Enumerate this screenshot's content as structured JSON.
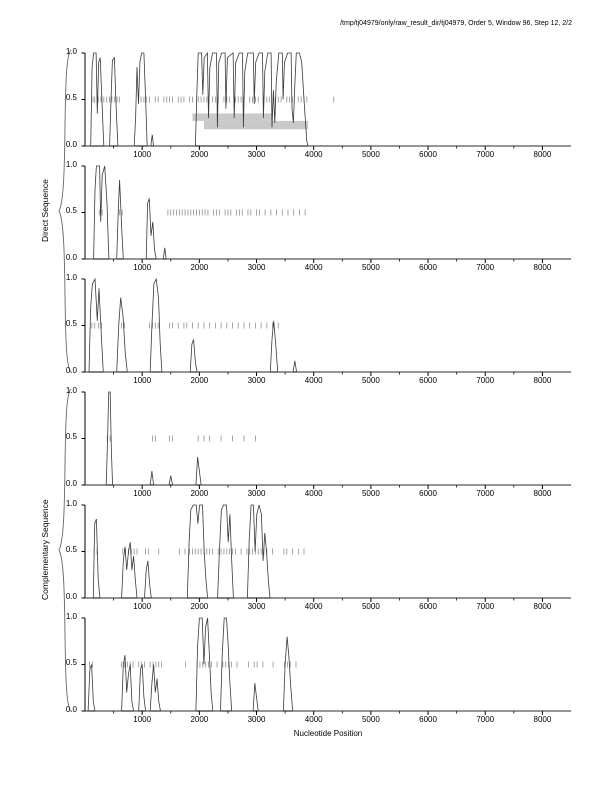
{
  "title": "/tmp/tj04979/only/raw_result_dir/tj04979, Order 5, Window 96, Step 12, 2/2",
  "xlabel": "Nucleotide Position",
  "group_labels": {
    "direct": "Direct Sequence",
    "complementary": "Complementary Sequence"
  },
  "axis": {
    "x_min": 0,
    "x_max": 8500,
    "x_major_ticks": [
      1000,
      2000,
      3000,
      4000,
      5000,
      6000,
      7000,
      8000
    ],
    "x_minor_step": 500,
    "y_tick_labels": [
      "1.0",
      "0.5",
      "0.0"
    ],
    "y_tick_values": [
      1,
      0.5,
      0
    ]
  },
  "colors": {
    "curve": "#3a3a3a",
    "marks": "#909090",
    "region": "#c9c9c9",
    "axis": "#000000",
    "brace": "#666666"
  },
  "chart_data": [
    {
      "name": "direct-frame-1",
      "type": "line",
      "ylim": [
        0,
        1
      ],
      "points": [
        [
          0,
          0
        ],
        [
          100,
          0
        ],
        [
          125,
          0.85
        ],
        [
          150,
          1
        ],
        [
          195,
          1
        ],
        [
          215,
          0.35
        ],
        [
          240,
          0.9
        ],
        [
          265,
          0.95
        ],
        [
          295,
          0.5
        ],
        [
          325,
          0.05
        ],
        [
          330,
          0
        ],
        [
          430,
          0
        ],
        [
          455,
          0.5
        ],
        [
          480,
          0.92
        ],
        [
          515,
          0.95
        ],
        [
          545,
          0.4
        ],
        [
          575,
          0
        ],
        [
          860,
          0
        ],
        [
          885,
          0.3
        ],
        [
          910,
          0.85
        ],
        [
          935,
          0.45
        ],
        [
          960,
          0.9
        ],
        [
          990,
          1
        ],
        [
          1030,
          1
        ],
        [
          1060,
          0.5
        ],
        [
          1085,
          0.05
        ],
        [
          1090,
          0
        ],
        [
          1150,
          0
        ],
        [
          1175,
          0.12
        ],
        [
          1200,
          0
        ],
        [
          1930,
          0
        ],
        [
          1955,
          0.55
        ],
        [
          1980,
          1
        ],
        [
          2040,
          1
        ],
        [
          2060,
          0.55
        ],
        [
          2085,
          0.95
        ],
        [
          2140,
          1
        ],
        [
          2160,
          0.3
        ],
        [
          2185,
          0.85
        ],
        [
          2230,
          1
        ],
        [
          2300,
          1
        ],
        [
          2315,
          0.2
        ],
        [
          2340,
          0.9
        ],
        [
          2390,
          1
        ],
        [
          2450,
          1
        ],
        [
          2465,
          0.4
        ],
        [
          2490,
          0.95
        ],
        [
          2590,
          1
        ],
        [
          2610,
          0.3
        ],
        [
          2635,
          0.9
        ],
        [
          2700,
          1
        ],
        [
          2755,
          1
        ],
        [
          2770,
          0.2
        ],
        [
          2795,
          0.8
        ],
        [
          2845,
          1
        ],
        [
          2945,
          1
        ],
        [
          2960,
          0.45
        ],
        [
          2985,
          0.9
        ],
        [
          3045,
          1
        ],
        [
          3105,
          1
        ],
        [
          3120,
          0.3
        ],
        [
          3145,
          0.8
        ],
        [
          3195,
          1
        ],
        [
          3255,
          1
        ],
        [
          3270,
          0.2
        ],
        [
          3295,
          0.6
        ],
        [
          3320,
          0.25
        ],
        [
          3345,
          0.7
        ],
        [
          3390,
          1
        ],
        [
          3450,
          1
        ],
        [
          3465,
          0.5
        ],
        [
          3490,
          0.9
        ],
        [
          3545,
          1
        ],
        [
          3605,
          1
        ],
        [
          3620,
          0.4
        ],
        [
          3645,
          0.25
        ],
        [
          3670,
          0.65
        ],
        [
          3695,
          1
        ],
        [
          3750,
          1
        ],
        [
          3790,
          0.9
        ],
        [
          3840,
          0.4
        ],
        [
          3880,
          0.05
        ],
        [
          3900,
          0
        ],
        [
          8500,
          0
        ]
      ],
      "marks_y": 0.5,
      "marks": [
        140,
        170,
        230,
        280,
        330,
        380,
        430,
        470,
        520,
        560,
        600,
        980,
        1030,
        1080,
        1130,
        1230,
        1280,
        1380,
        1430,
        1480,
        1530,
        1630,
        1680,
        1730,
        1830,
        1880,
        1980,
        2030,
        2080,
        2130,
        2230,
        2280,
        2330,
        2430,
        2480,
        2530,
        2630,
        2680,
        2730,
        2780,
        2880,
        2930,
        2980,
        3030,
        3130,
        3180,
        3230,
        3330,
        3380,
        3430,
        3530,
        3580,
        3630,
        3730,
        3780,
        3830,
        3880,
        4350
      ],
      "regions": [
        {
          "x0": 1880,
          "x1": 3280,
          "y0": 0.27,
          "y1": 0.35
        },
        {
          "x0": 2080,
          "x1": 3900,
          "y0": 0.18,
          "y1": 0.27
        }
      ]
    },
    {
      "name": "direct-frame-2",
      "type": "line",
      "ylim": [
        0,
        1
      ],
      "points": [
        [
          0,
          0
        ],
        [
          150,
          0
        ],
        [
          175,
          0.75
        ],
        [
          200,
          1
        ],
        [
          255,
          1
        ],
        [
          275,
          0.4
        ],
        [
          300,
          0.9
        ],
        [
          345,
          1
        ],
        [
          385,
          0.6
        ],
        [
          415,
          0.05
        ],
        [
          420,
          0
        ],
        [
          555,
          0
        ],
        [
          580,
          0.5
        ],
        [
          605,
          0.85
        ],
        [
          640,
          0.35
        ],
        [
          670,
          0
        ],
        [
          1070,
          0
        ],
        [
          1095,
          0.6
        ],
        [
          1125,
          0.65
        ],
        [
          1155,
          0.25
        ],
        [
          1185,
          0.4
        ],
        [
          1215,
          0.1
        ],
        [
          1245,
          0
        ],
        [
          1370,
          0
        ],
        [
          1395,
          0.12
        ],
        [
          1420,
          0
        ],
        [
          8500,
          0
        ]
      ],
      "marks_y": 0.5,
      "marks": [
        250,
        300,
        600,
        650,
        1450,
        1500,
        1550,
        1600,
        1650,
        1700,
        1750,
        1800,
        1850,
        1900,
        1950,
        2000,
        2050,
        2100,
        2150,
        2250,
        2300,
        2350,
        2450,
        2500,
        2550,
        2650,
        2700,
        2750,
        2850,
        2900,
        3000,
        3050,
        3150,
        3250,
        3350,
        3450,
        3550,
        3650,
        3750,
        3850
      ],
      "regions": []
    },
    {
      "name": "direct-frame-3",
      "type": "line",
      "ylim": [
        0,
        1
      ],
      "points": [
        [
          0,
          0
        ],
        [
          70,
          0
        ],
        [
          100,
          0.7
        ],
        [
          130,
          0.95
        ],
        [
          175,
          1
        ],
        [
          215,
          0.55
        ],
        [
          245,
          0.9
        ],
        [
          285,
          0.4
        ],
        [
          315,
          0.05
        ],
        [
          320,
          0
        ],
        [
          555,
          0
        ],
        [
          590,
          0.5
        ],
        [
          625,
          0.8
        ],
        [
          665,
          0.6
        ],
        [
          705,
          0.2
        ],
        [
          740,
          0
        ],
        [
          1140,
          0
        ],
        [
          1170,
          0.5
        ],
        [
          1205,
          0.95
        ],
        [
          1245,
          1
        ],
        [
          1285,
          0.8
        ],
        [
          1315,
          0.3
        ],
        [
          1345,
          0
        ],
        [
          1840,
          0
        ],
        [
          1870,
          0.3
        ],
        [
          1900,
          0.35
        ],
        [
          1930,
          0.1
        ],
        [
          1960,
          0
        ],
        [
          3240,
          0
        ],
        [
          3270,
          0.35
        ],
        [
          3300,
          0.55
        ],
        [
          3335,
          0.3
        ],
        [
          3365,
          0.05
        ],
        [
          3370,
          0
        ],
        [
          3640,
          0
        ],
        [
          3670,
          0.12
        ],
        [
          3700,
          0
        ],
        [
          8500,
          0
        ]
      ],
      "marks_y": 0.5,
      "marks": [
        120,
        170,
        240,
        290,
        640,
        690,
        1130,
        1180,
        1230,
        1280,
        1480,
        1530,
        1630,
        1730,
        1780,
        1880,
        1980,
        2080,
        2180,
        2280,
        2380,
        2480,
        2580,
        2680,
        2780,
        2880,
        2980,
        3080,
        3180,
        3280,
        3380
      ],
      "regions": []
    },
    {
      "name": "complementary-frame-1",
      "type": "line",
      "ylim": [
        0,
        1
      ],
      "points": [
        [
          0,
          0
        ],
        [
          370,
          0
        ],
        [
          395,
          0.5
        ],
        [
          415,
          1
        ],
        [
          440,
          1
        ],
        [
          460,
          0.4
        ],
        [
          480,
          0.05
        ],
        [
          485,
          0
        ],
        [
          1140,
          0
        ],
        [
          1170,
          0.15
        ],
        [
          1200,
          0
        ],
        [
          1470,
          0
        ],
        [
          1500,
          0.1
        ],
        [
          1530,
          0
        ],
        [
          1940,
          0
        ],
        [
          1970,
          0.3
        ],
        [
          2000,
          0.15
        ],
        [
          2030,
          0
        ],
        [
          8500,
          0
        ]
      ],
      "marks_y": 0.5,
      "marks": [
        390,
        440,
        1180,
        1230,
        1480,
        1530,
        1980,
        2080,
        2180,
        2380,
        2580,
        2780,
        2980
      ],
      "regions": []
    },
    {
      "name": "complementary-frame-2",
      "type": "line",
      "ylim": [
        0,
        1
      ],
      "points": [
        [
          0,
          0
        ],
        [
          145,
          0
        ],
        [
          170,
          0.8
        ],
        [
          200,
          0.85
        ],
        [
          230,
          0.2
        ],
        [
          260,
          0
        ],
        [
          640,
          0
        ],
        [
          670,
          0.4
        ],
        [
          700,
          0.55
        ],
        [
          730,
          0.3
        ],
        [
          760,
          0.5
        ],
        [
          790,
          0.6
        ],
        [
          820,
          0.3
        ],
        [
          850,
          0.45
        ],
        [
          880,
          0.2
        ],
        [
          910,
          0
        ],
        [
          1040,
          0
        ],
        [
          1070,
          0.3
        ],
        [
          1100,
          0.4
        ],
        [
          1130,
          0.15
        ],
        [
          1160,
          0
        ],
        [
          1790,
          0
        ],
        [
          1820,
          0.6
        ],
        [
          1850,
          0.95
        ],
        [
          1895,
          1
        ],
        [
          1945,
          1
        ],
        [
          1975,
          0.8
        ],
        [
          2005,
          1
        ],
        [
          2055,
          1
        ],
        [
          2085,
          0.5
        ],
        [
          2115,
          0.2
        ],
        [
          2145,
          0
        ],
        [
          2320,
          0
        ],
        [
          2350,
          0.5
        ],
        [
          2385,
          0.95
        ],
        [
          2425,
          1
        ],
        [
          2475,
          1
        ],
        [
          2505,
          0.6
        ],
        [
          2535,
          0.9
        ],
        [
          2565,
          0.4
        ],
        [
          2595,
          0
        ],
        [
          2840,
          0
        ],
        [
          2870,
          0.6
        ],
        [
          2905,
          1
        ],
        [
          2945,
          1
        ],
        [
          2975,
          0.5
        ],
        [
          3005,
          0.9
        ],
        [
          3045,
          1
        ],
        [
          3085,
          0.9
        ],
        [
          3115,
          0.4
        ],
        [
          3145,
          0.7
        ],
        [
          3175,
          0.5
        ],
        [
          3205,
          0.2
        ],
        [
          3235,
          0
        ],
        [
          8500,
          0
        ]
      ],
      "marks_y": 0.5,
      "marks": [
        160,
        210,
        660,
        710,
        760,
        810,
        860,
        910,
        1060,
        1110,
        1290,
        1650,
        1750,
        1830,
        1880,
        1930,
        1980,
        2030,
        2080,
        2130,
        2180,
        2230,
        2330,
        2380,
        2430,
        2480,
        2530,
        2580,
        2630,
        2730,
        2830,
        2880,
        2930,
        2980,
        3030,
        3080,
        3130,
        3180,
        3280,
        3480,
        3530,
        3630,
        3730,
        3830
      ],
      "regions": []
    },
    {
      "name": "complementary-frame-3",
      "type": "line",
      "ylim": [
        0,
        1
      ],
      "points": [
        [
          0,
          0
        ],
        [
          55,
          0
        ],
        [
          85,
          0.45
        ],
        [
          115,
          0.5
        ],
        [
          145,
          0.1
        ],
        [
          175,
          0
        ],
        [
          640,
          0
        ],
        [
          670,
          0.5
        ],
        [
          700,
          0.6
        ],
        [
          730,
          0.2
        ],
        [
          760,
          0.4
        ],
        [
          790,
          0.5
        ],
        [
          820,
          0.1
        ],
        [
          850,
          0
        ],
        [
          940,
          0
        ],
        [
          970,
          0.45
        ],
        [
          1000,
          0.5
        ],
        [
          1030,
          0.15
        ],
        [
          1060,
          0
        ],
        [
          1140,
          0
        ],
        [
          1170,
          0.3
        ],
        [
          1200,
          0.5
        ],
        [
          1230,
          0.2
        ],
        [
          1260,
          0.35
        ],
        [
          1290,
          0.1
        ],
        [
          1320,
          0
        ],
        [
          1940,
          0
        ],
        [
          1970,
          0.7
        ],
        [
          2000,
          1
        ],
        [
          2050,
          1
        ],
        [
          2080,
          0.5
        ],
        [
          2110,
          0.9
        ],
        [
          2145,
          1
        ],
        [
          2175,
          0.6
        ],
        [
          2205,
          0.2
        ],
        [
          2235,
          0
        ],
        [
          2370,
          0
        ],
        [
          2400,
          0.6
        ],
        [
          2435,
          1
        ],
        [
          2475,
          1
        ],
        [
          2505,
          0.7
        ],
        [
          2535,
          0.3
        ],
        [
          2565,
          0
        ],
        [
          2940,
          0
        ],
        [
          2970,
          0.3
        ],
        [
          3000,
          0.15
        ],
        [
          3030,
          0
        ],
        [
          3470,
          0
        ],
        [
          3500,
          0.5
        ],
        [
          3535,
          0.8
        ],
        [
          3565,
          0.6
        ],
        [
          3595,
          0.3
        ],
        [
          3625,
          0.05
        ],
        [
          3630,
          0
        ],
        [
          8500,
          0
        ]
      ],
      "marks_y": 0.5,
      "marks": [
        80,
        130,
        640,
        690,
        740,
        790,
        840,
        940,
        990,
        1040,
        1140,
        1190,
        1240,
        1290,
        1340,
        1760,
        1960,
        2010,
        2060,
        2110,
        2160,
        2210,
        2310,
        2410,
        2460,
        2510,
        2560,
        2660,
        2860,
        2960,
        3010,
        3110,
        3290,
        3490,
        3540,
        3590,
        3690
      ],
      "regions": []
    }
  ]
}
